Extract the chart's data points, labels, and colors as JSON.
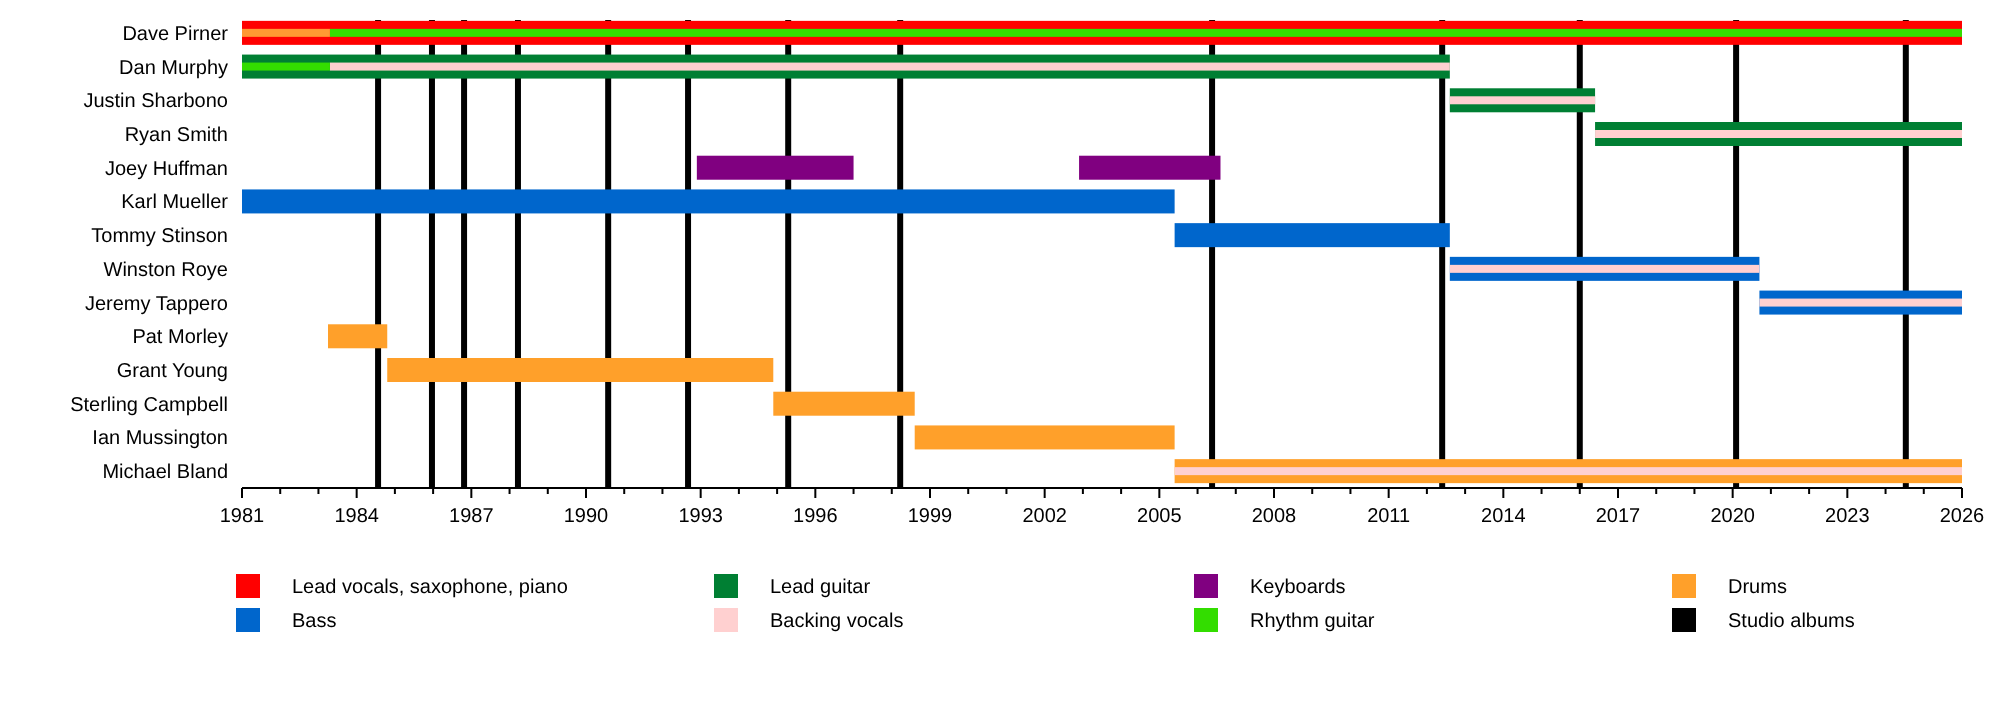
{
  "chart_data": {
    "type": "bar",
    "orientation": "horizontal",
    "legend": "bottom",
    "categories": [
      "Dave Pirner",
      "Dan Murphy",
      "Justin Sharbono",
      "Ryan Smith",
      "Joey Huffman",
      "Karl Mueller",
      "Tommy Stinson",
      "Winston Roye",
      "Jeremy Tappero",
      "Pat Morley",
      "Grant Young",
      "Sterling Campbell",
      "Ian Mussington",
      "Michael Bland"
    ],
    "xlim": [
      1981,
      2026
    ],
    "xticks": [
      1981,
      {
        "value": 1982,
        "label": null
      },
      {
        "value": 1983,
        "label": null
      },
      1984,
      {
        "value": 1985,
        "label": null
      },
      {
        "value": 1986,
        "label": null
      },
      1987,
      {
        "value": 1988,
        "label": null
      },
      {
        "value": 1989,
        "label": null
      },
      1990,
      {
        "value": 1991,
        "label": null
      },
      {
        "value": 1992,
        "label": null
      },
      1993,
      {
        "value": 1994,
        "label": null
      },
      {
        "value": 1995,
        "label": null
      },
      1996,
      {
        "value": 1997,
        "label": null
      },
      {
        "value": 1998,
        "label": null
      },
      1999,
      {
        "value": 2000,
        "label": null
      },
      {
        "value": 2001,
        "label": null
      },
      2002,
      {
        "value": 2003,
        "label": null
      },
      {
        "value": 2004,
        "label": null
      },
      2005,
      {
        "value": 2006,
        "label": null
      },
      {
        "value": 2007,
        "label": null
      },
      2008,
      {
        "value": 2009,
        "label": null
      },
      {
        "value": 2010,
        "label": null
      },
      2011,
      {
        "value": 2012,
        "label": null
      },
      {
        "value": 2013,
        "label": null
      },
      2014,
      {
        "value": 2015,
        "label": null
      },
      {
        "value": 2016,
        "label": null
      },
      2017,
      {
        "value": 2018,
        "label": null
      },
      {
        "value": 2019,
        "label": null
      },
      2020,
      {
        "value": 2021,
        "label": null
      },
      {
        "value": 2022,
        "label": null
      },
      2023,
      {
        "value": 2024,
        "label": null
      },
      {
        "value": 2025,
        "label": null
      },
      2026
    ],
    "series": [
      {
        "name": "Lead vocals, saxophone, piano",
        "color": "#ff0000",
        "base": [
          1981,
          null,
          null,
          null,
          null,
          null,
          null,
          null,
          null,
          null,
          null,
          null,
          null,
          null
        ],
        "values": [
          45,
          null,
          null,
          null,
          null,
          null,
          null,
          null,
          null,
          null,
          null,
          null,
          null,
          null
        ]
      },
      {
        "name": "Lead guitar",
        "color": "#007f33",
        "base": [
          null,
          1981,
          2012.6,
          2016.4,
          null,
          null,
          null,
          null,
          null,
          null,
          null,
          null,
          null,
          null
        ],
        "values": [
          null,
          31.6,
          3.8,
          9.6,
          null,
          null,
          null,
          null,
          null,
          null,
          null,
          null,
          null,
          null
        ]
      },
      {
        "name": "Keyboards",
        "color": "#800080",
        "base": [
          null,
          null,
          null,
          null,
          1992.9,
          null,
          null,
          null,
          null,
          null,
          null,
          null,
          null,
          null
        ],
        "values": [
          null,
          null,
          null,
          null,
          4.1,
          null,
          null,
          null,
          null,
          null,
          null,
          null,
          null,
          null
        ]
      },
      {
        "color": "#800080",
        "base": [
          null,
          null,
          null,
          null,
          2002.9,
          null,
          null,
          null,
          null,
          null,
          null,
          null,
          null,
          null
        ],
        "values": [
          null,
          null,
          null,
          null,
          3.7,
          null,
          null,
          null,
          null,
          null,
          null,
          null,
          null,
          null
        ]
      },
      {
        "name": "Drums",
        "color": "#ffa02a",
        "base": [
          null,
          null,
          null,
          null,
          null,
          null,
          null,
          null,
          null,
          1983.25,
          1984.8,
          1994.9,
          1998.6,
          2005.4
        ],
        "values": [
          null,
          null,
          null,
          null,
          null,
          null,
          null,
          null,
          null,
          1.55,
          10.1,
          3.7,
          6.8,
          20.6
        ]
      },
      {
        "name": "Bass",
        "color": "#0066cc",
        "base": [
          null,
          null,
          null,
          null,
          null,
          1981,
          2005.4,
          2012.6,
          2020.7,
          null,
          null,
          null,
          null,
          null
        ],
        "values": [
          null,
          null,
          null,
          null,
          null,
          24.4,
          7.2,
          8.1,
          5.3,
          null,
          null,
          null,
          null,
          null
        ]
      },
      {
        "name": "Backing vocals",
        "color": "#ffd0d0",
        "base": [
          null,
          1983.3,
          2012.6,
          2016.4,
          null,
          null,
          null,
          2012.6,
          2020.7,
          null,
          null,
          null,
          null,
          2005.4
        ],
        "values": [
          null,
          29.3,
          3.8,
          9.6,
          null,
          null,
          null,
          8.1,
          5.3,
          null,
          null,
          null,
          null,
          20.6
        ]
      },
      {
        "name": "Rhythm guitar",
        "color": "#33dd00",
        "base": [
          1983.3,
          1981,
          null,
          null,
          null,
          null,
          null,
          null,
          null,
          null,
          null,
          null,
          null,
          null
        ],
        "values": [
          42.7,
          2.3,
          null,
          null,
          null,
          null,
          null,
          null,
          null,
          null,
          null,
          null,
          null,
          null
        ]
      },
      {
        "color": "#ff9933",
        "base": [
          1981,
          null,
          null,
          null,
          null,
          null,
          null,
          null,
          null,
          null,
          null,
          null,
          null,
          null
        ],
        "values": [
          2.3,
          null,
          null,
          null,
          null,
          null,
          null,
          null,
          null,
          null,
          null,
          null,
          null,
          null
        ]
      }
    ],
    "ref_lines": [
      {
        "axis": "x",
        "value": 1984.56,
        "label": "Studio albums",
        "color": "#000000"
      },
      {
        "axis": "x",
        "value": 1985.97,
        "color": "#000000"
      },
      {
        "axis": "x",
        "value": 1986.81,
        "color": "#000000"
      },
      {
        "axis": "x",
        "value": 1988.22,
        "color": "#000000"
      },
      {
        "axis": "x",
        "value": 1990.58,
        "color": "#000000"
      },
      {
        "axis": "x",
        "value": 1992.67,
        "color": "#000000"
      },
      {
        "axis": "x",
        "value": 1995.29,
        "color": "#000000"
      },
      {
        "axis": "x",
        "value": 1998.22,
        "color": "#000000"
      },
      {
        "axis": "x",
        "value": 2006.38,
        "color": "#000000"
      },
      {
        "axis": "x",
        "value": 2012.4,
        "color": "#000000"
      },
      {
        "axis": "x",
        "value": 2016.0,
        "color": "#000000"
      },
      {
        "axis": "x",
        "value": 2020.09,
        "color": "#000000"
      },
      {
        "axis": "x",
        "value": 2024.53,
        "color": "#000000"
      }
    ]
  }
}
